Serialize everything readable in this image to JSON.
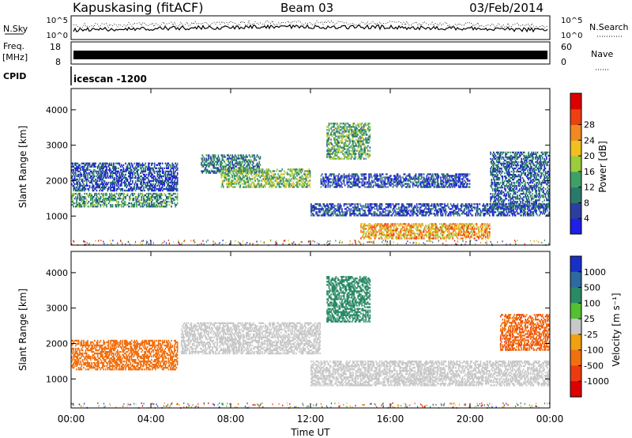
{
  "header": {
    "station": "Kapuskasing (fitACF)",
    "beam": "Beam 03",
    "date": "03/Feb/2014"
  },
  "strips": {
    "nsky_label": "N.Sky",
    "nsky_ticks": [
      "10^5",
      "10^0"
    ],
    "nsearch_label": "N.Search",
    "nsearch_ticks": [
      "10^5",
      "10^0"
    ],
    "freq_label": "Freq.",
    "freq_unit": "[MHz]",
    "freq_ticks": [
      "18",
      "8"
    ],
    "nave_label": "Nave",
    "nave_ticks": [
      "60",
      "0"
    ],
    "cpid_label": "CPID",
    "cpid_value": "icescan -1200"
  },
  "panels": {
    "ylabel": "Slant Range [km]",
    "xlabel": "Time UT",
    "power_colorbar_label": "Power [dB]",
    "velocity_colorbar_label": "Velocity [m s⁻¹]"
  },
  "chart_data": [
    {
      "type": "heatmap",
      "name": "power",
      "xlabel": "Time UT",
      "ylabel": "Slant Range [km]",
      "xlim": [
        0,
        24
      ],
      "ylim": [
        180,
        4600
      ],
      "x_ticks": [
        "00:00",
        "04:00",
        "08:00",
        "12:00",
        "16:00",
        "20:00",
        "00:00"
      ],
      "y_ticks": [
        1000,
        2000,
        3000,
        4000
      ],
      "colorbar": {
        "label": "Power [dB]",
        "ticks": [
          4,
          8,
          12,
          16,
          20,
          24,
          28
        ],
        "colors": [
          "#1f1fe6",
          "#2c3fa0",
          "#2a7a6a",
          "#3ea068",
          "#9ccc3c",
          "#f0c020",
          "#f08a20",
          "#ee4010",
          "#dd0000"
        ]
      },
      "regions": [
        {
          "t": [
            0.0,
            5.3
          ],
          "r": [
            1250,
            1650
          ],
          "level": 12
        },
        {
          "t": [
            0.0,
            5.3
          ],
          "r": [
            1700,
            2500
          ],
          "level": 6
        },
        {
          "t": [
            6.5,
            9.5
          ],
          "r": [
            2200,
            2700
          ],
          "level": 10
        },
        {
          "t": [
            7.5,
            12.0
          ],
          "r": [
            1800,
            2300
          ],
          "level": 16
        },
        {
          "t": [
            12.0,
            24.0
          ],
          "r": [
            1000,
            1350
          ],
          "level": 6
        },
        {
          "t": [
            12.5,
            20.0
          ],
          "r": [
            1800,
            2200
          ],
          "level": 6
        },
        {
          "t": [
            12.8,
            15.0
          ],
          "r": [
            2600,
            3600
          ],
          "level": 14
        },
        {
          "t": [
            14.5,
            21.0
          ],
          "r": [
            350,
            800
          ],
          "level": 24
        },
        {
          "t": [
            21.0,
            24.0
          ],
          "r": [
            1200,
            2800
          ],
          "level": 8
        }
      ]
    },
    {
      "type": "heatmap",
      "name": "velocity",
      "xlabel": "Time UT",
      "ylabel": "Slant Range [km]",
      "xlim": [
        0,
        24
      ],
      "ylim": [
        180,
        4600
      ],
      "x_ticks": [
        "00:00",
        "04:00",
        "08:00",
        "12:00",
        "16:00",
        "20:00",
        "00:00"
      ],
      "y_ticks": [
        1000,
        2000,
        3000,
        4000
      ],
      "colorbar": {
        "label": "Velocity [m s⁻¹]",
        "ticks": [
          1000,
          500,
          100,
          25,
          -25,
          -100,
          -500,
          -1000
        ],
        "colors": [
          "#1830c8",
          "#2c6aa0",
          "#2a8a66",
          "#52c030",
          "#c8c8c8",
          "#f0a010",
          "#f07010",
          "#ee3a10",
          "#dd0000"
        ]
      },
      "regions": [
        {
          "t": [
            0.0,
            5.3
          ],
          "r": [
            1250,
            2100
          ],
          "level": -300
        },
        {
          "t": [
            5.5,
            12.5
          ],
          "r": [
            1700,
            2600
          ],
          "level": 0
        },
        {
          "t": [
            12.0,
            24.0
          ],
          "r": [
            800,
            1500
          ],
          "level": 0
        },
        {
          "t": [
            12.8,
            15.0
          ],
          "r": [
            2600,
            3900
          ],
          "level": 200
        },
        {
          "t": [
            21.5,
            24.0
          ],
          "r": [
            1800,
            2800
          ],
          "level": -400
        }
      ]
    }
  ]
}
